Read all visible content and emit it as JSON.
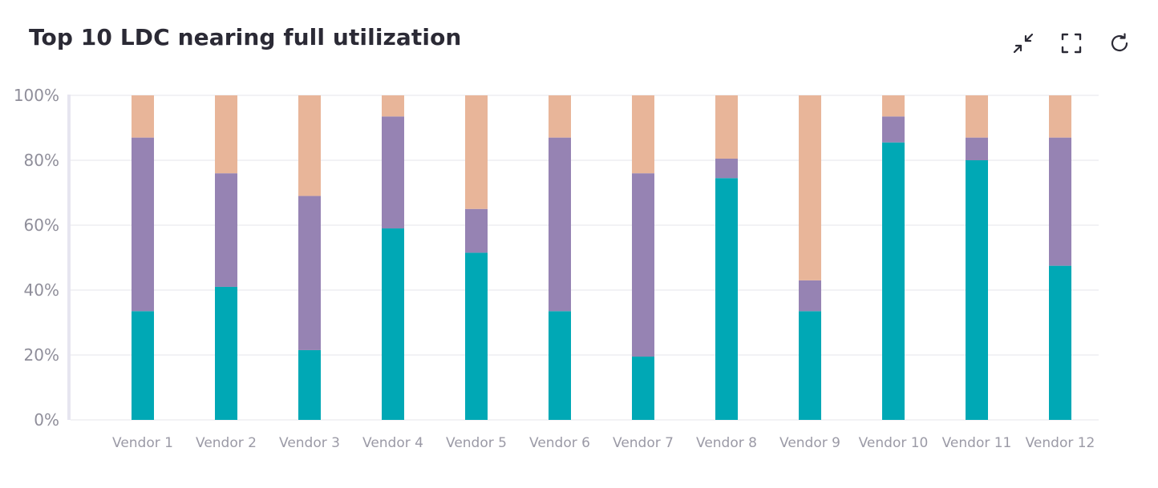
{
  "header": {
    "title": "Top 10 LDC nearing full utilization",
    "actions": [
      {
        "name": "collapse",
        "icon": "collapse-arrows-icon"
      },
      {
        "name": "fullscreen",
        "icon": "fullscreen-corners-icon"
      },
      {
        "name": "refresh",
        "icon": "refresh-icon"
      }
    ]
  },
  "colors": {
    "series_1": "#00a8b5",
    "series_2": "#9683b3",
    "series_3": "#e8b599",
    "grid": "#eeeef2",
    "axis": "#e6e5f0",
    "text": "#2b2a35",
    "tick_text": "#8f8e9a"
  },
  "chart_data": {
    "type": "bar",
    "stacked": true,
    "title": "Top 10 LDC nearing full utilization",
    "xlabel": "",
    "ylabel": "",
    "ylim": [
      0,
      100
    ],
    "y_ticks": [
      0,
      20,
      40,
      60,
      80,
      100
    ],
    "y_tick_labels": [
      "0%",
      "20%",
      "40%",
      "60%",
      "80%",
      "100%"
    ],
    "grid": true,
    "legend": "none",
    "categories": [
      "Vendor 1",
      "Vendor 2",
      "Vendor 3",
      "Vendor 4",
      "Vendor 5",
      "Vendor 6",
      "Vendor 7",
      "Vendor 8",
      "Vendor 9",
      "Vendor 10",
      "Vendor 11",
      "Vendor 12"
    ],
    "series": [
      {
        "color": "#00a8b5",
        "values": [
          33.5,
          41,
          21.5,
          59,
          51.5,
          33.5,
          19.5,
          74.5,
          33.5,
          85.5,
          80,
          47.5
        ]
      },
      {
        "color": "#9683b3",
        "values": [
          53.5,
          35,
          47.5,
          34.5,
          13.5,
          53.5,
          56.5,
          6,
          9.5,
          8,
          7,
          39.5
        ]
      },
      {
        "color": "#e8b599",
        "values": [
          13,
          24,
          31,
          6.5,
          35,
          13,
          24,
          19.5,
          57,
          6.5,
          13,
          13
        ]
      }
    ]
  }
}
